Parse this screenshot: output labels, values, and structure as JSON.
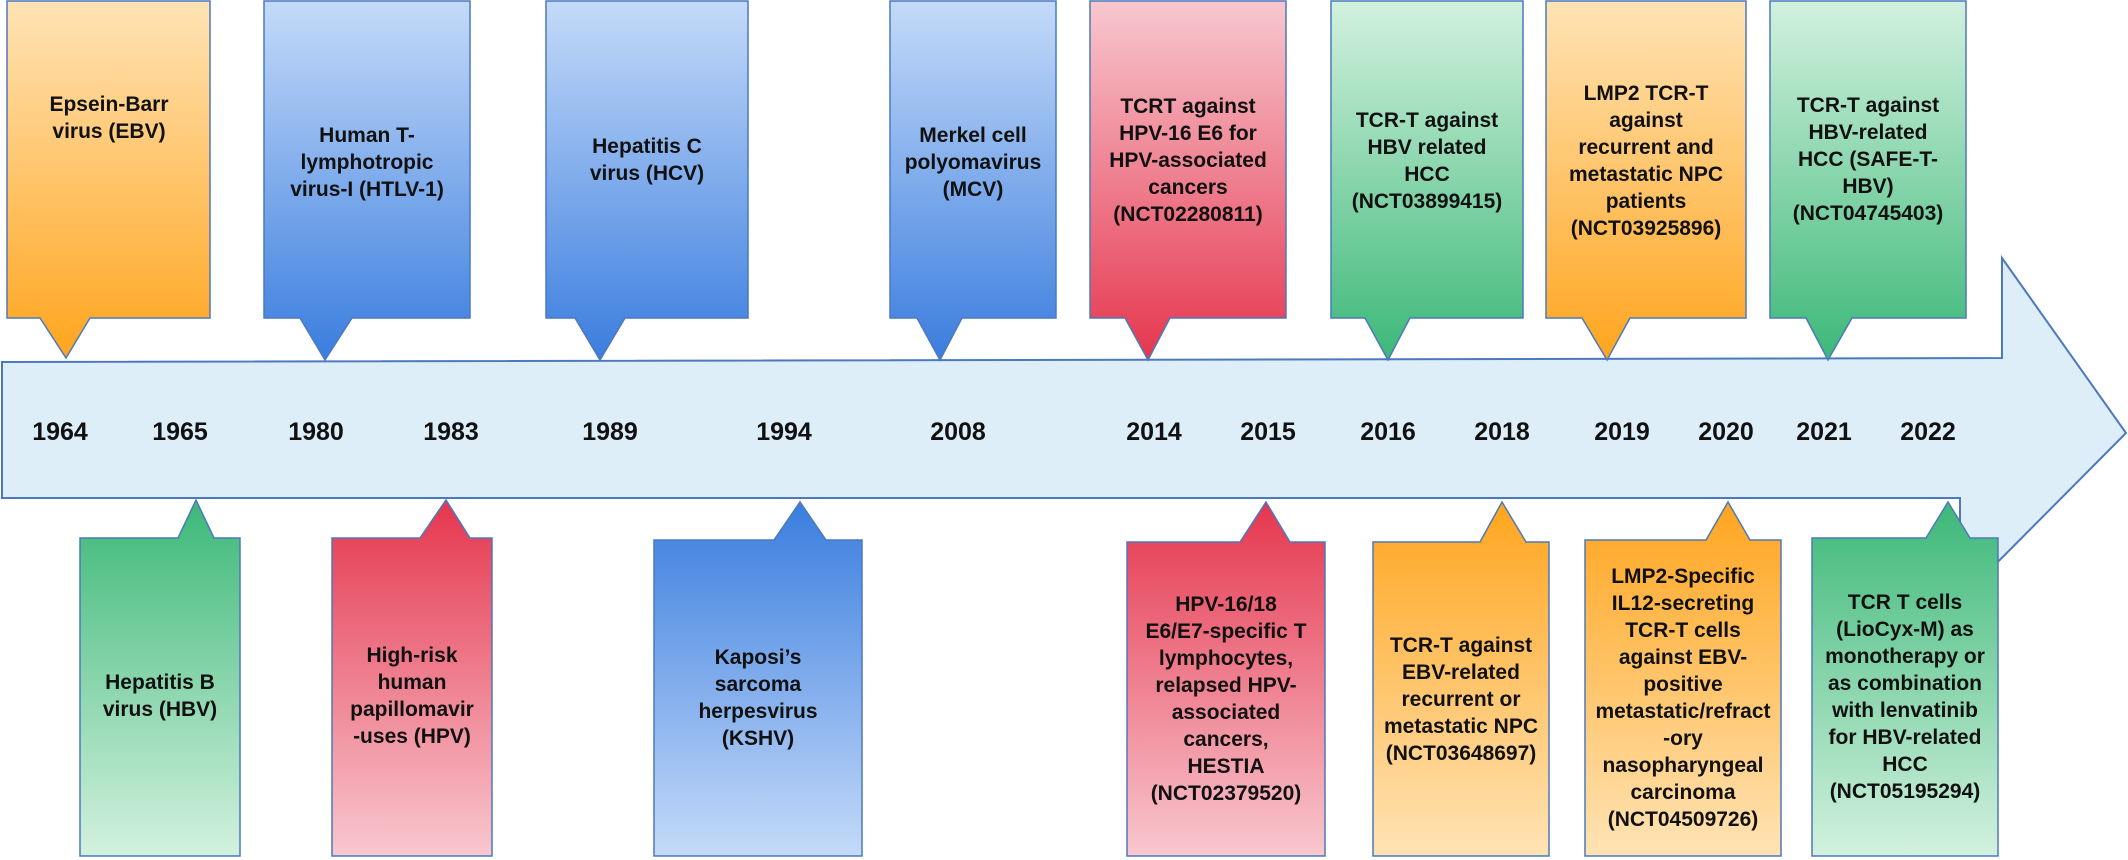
{
  "colors": {
    "orange": [
      "#FFE3B5",
      "#FFA51E"
    ],
    "blue": [
      "#C4DAF8",
      "#3A7DDF"
    ],
    "green": [
      "#D2F1DE",
      "#3CB878"
    ],
    "red": [
      "#F8C7CF",
      "#E5364E"
    ],
    "arrow_fill": "#DDEEF9",
    "arrow_stroke": "#4C79BC"
  },
  "years": [
    "1964",
    "1965",
    "1980",
    "1983",
    "1989",
    "1994",
    "2008",
    "2014",
    "2015",
    "2016",
    "2018",
    "2019",
    "2020",
    "2021",
    "2022"
  ],
  "top_events": [
    {
      "text": "Epsein-Barr\nvirus (EBV)",
      "color": "orange",
      "grad": "down"
    },
    {
      "text": "Human T-\nlymphotropic\nvirus-I (HTLV-1)",
      "color": "blue",
      "grad": "down"
    },
    {
      "text": "Hepatitis C\nvirus (HCV)",
      "color": "blue",
      "grad": "down"
    },
    {
      "text": "Merkel cell\npolyomavirus\n(MCV)",
      "color": "blue",
      "grad": "down"
    },
    {
      "text": "TCRT against\nHPV-16 E6 for\nHPV-associated\ncancers\n(NCT02280811)",
      "color": "red",
      "grad": "down"
    },
    {
      "text": "TCR-T against\nHBV related\nHCC\n(NCT03899415)",
      "color": "green",
      "grad": "down"
    },
    {
      "text": "LMP2 TCR-T\nagainst\nrecurrent and\nmetastatic NPC\npatients\n(NCT03925896)",
      "color": "orange",
      "grad": "down"
    },
    {
      "text": "TCR-T against\nHBV-related\nHCC (SAFE-T-\nHBV)\n(NCT04745403)",
      "color": "green",
      "grad": "down"
    }
  ],
  "bottom_events": [
    {
      "text": "Hepatitis B\nvirus (HBV)",
      "color": "green",
      "grad": "up"
    },
    {
      "text": "High-risk\nhuman\npapillomavir\n-uses (HPV)",
      "color": "red",
      "grad": "up"
    },
    {
      "text": "Kaposi’s\nsarcoma\nherpesvirus\n(KSHV)",
      "color": "blue",
      "grad": "up"
    },
    {
      "text": "HPV-16/18\nE6/E7-specific T\nlymphocytes,\nrelapsed HPV-\nassociated\ncancers,\nHESTIA\n(NCT02379520)",
      "color": "red",
      "grad": "up"
    },
    {
      "text": "TCR-T against\nEBV-related\nrecurrent or\nmetastatic NPC\n(NCT03648697)",
      "color": "orange",
      "grad": "up"
    },
    {
      "text": "LMP2-Specific\nIL12-secreting\nTCR-T cells\nagainst EBV-\npositive\nmetastatic/refract\n-ory\nnasopharyngeal\ncarcinoma\n(NCT04509726)",
      "color": "orange",
      "grad": "up"
    },
    {
      "text": "TCR T cells\n(LioCyx-M) as\nmonotherapy or\nas combination\nwith lenvatinib\nfor HBV-related\nHCC\n(NCT05195294)",
      "color": "green",
      "grad": "up"
    }
  ]
}
